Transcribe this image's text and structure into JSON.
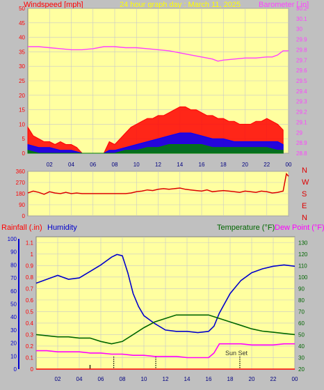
{
  "header": {
    "left_label": "Windspeed [mph]",
    "title": "24 hour graph day : March 11, 2025",
    "right_label": "Barometer [.in]"
  },
  "colors": {
    "background": "#c0c0c0",
    "plot_bg": "#ffffa0",
    "grid": "#c8c8c8",
    "wind_gust": "#ff0000",
    "wind_avg": "#0000ff",
    "wind_low": "#008000",
    "barometer": "#ff40ff",
    "direction": "#dd0000",
    "humidity": "#0000cc",
    "temperature": "#006600",
    "dewpoint": "#ff00ff",
    "rain": "#ff0000",
    "left_axis_text": "#ff0000",
    "humidity_axis_text": "#0000cc",
    "temp_axis_text": "#006600"
  },
  "chart_data": [
    {
      "id": "wind-barometer",
      "type": "line",
      "title": "24 hour graph day : March 11, 2025",
      "ylabel": "Windspeed [mph]",
      "y2label": "Barometer [.in]",
      "x_range": [
        0,
        24
      ],
      "x_ticks": [
        "02",
        "04",
        "06",
        "08",
        "10",
        "12",
        "14",
        "16",
        "18",
        "20",
        "22",
        "00"
      ],
      "ylim": [
        0,
        50
      ],
      "y_ticks": [
        "0",
        "5",
        "10",
        "15",
        "20",
        "25",
        "30",
        "35",
        "40",
        "45",
        "50"
      ],
      "y2lim": [
        28.8,
        30.2
      ],
      "y2_ticks": [
        "28.8",
        "28.9",
        "29",
        "29.1",
        "29.2",
        "29.3",
        "29.4",
        "29.5",
        "29.6",
        "29.7",
        "29.8",
        "29.9",
        "30",
        "30.1",
        "30.2"
      ],
      "series": [
        {
          "key": "gust",
          "axis": "left",
          "x": [
            0,
            0.5,
            1,
            1.5,
            2,
            2.5,
            3,
            3.5,
            4,
            4.5,
            5,
            5.5,
            6,
            6.5,
            7,
            7.5,
            8,
            8.5,
            9,
            9.5,
            10,
            10.5,
            11,
            11.5,
            12,
            12.5,
            13,
            13.5,
            14,
            14.5,
            15,
            15.5,
            16,
            16.5,
            17,
            17.5,
            18,
            18.5,
            19,
            19.5,
            20,
            20.5,
            21,
            21.5,
            22,
            22.5,
            23,
            23.5
          ],
          "y": [
            9,
            6,
            5,
            4,
            4,
            3,
            4,
            3,
            3,
            2,
            0,
            0,
            0,
            0,
            0,
            4,
            3,
            5,
            7,
            9,
            10,
            11,
            12,
            12,
            13,
            13,
            14,
            15,
            16,
            16,
            15,
            15,
            14,
            13,
            13,
            12,
            12,
            11,
            11,
            10,
            10,
            10,
            11,
            11,
            12,
            11,
            10,
            8
          ]
        },
        {
          "key": "avg",
          "axis": "left",
          "x": [
            0,
            1,
            2,
            3,
            4,
            5,
            6,
            7,
            7.5,
            8,
            9,
            10,
            11,
            12,
            13,
            14,
            15,
            16,
            17,
            18,
            19,
            20,
            21,
            22,
            23,
            23.5
          ],
          "y": [
            3,
            2,
            2,
            1,
            1,
            0,
            0,
            0,
            1,
            1,
            2,
            3,
            4,
            5,
            6,
            7,
            7,
            6,
            5,
            5,
            4,
            4,
            4,
            4,
            4,
            3
          ]
        },
        {
          "key": "low",
          "axis": "left",
          "x": [
            0,
            1,
            2,
            3,
            4,
            5,
            6,
            7,
            7.5,
            8,
            9,
            10,
            11,
            12,
            13,
            14,
            15,
            16,
            17,
            18,
            19,
            20,
            21,
            22,
            23,
            23.5
          ],
          "y": [
            1,
            0,
            0,
            0,
            0,
            0,
            0,
            0,
            0,
            0,
            1,
            1,
            2,
            2,
            3,
            3,
            3,
            3,
            2,
            2,
            2,
            2,
            2,
            2,
            1,
            1
          ]
        },
        {
          "key": "barometer",
          "axis": "right",
          "x": [
            0,
            1,
            2,
            3,
            4,
            5,
            6,
            7,
            7.5,
            8,
            9,
            10,
            11,
            12,
            13,
            14,
            15,
            16,
            17,
            17.5,
            18,
            19,
            20,
            21,
            22,
            22.5,
            23,
            23.5,
            24
          ],
          "y": [
            29.83,
            29.83,
            29.82,
            29.81,
            29.8,
            29.8,
            29.81,
            29.83,
            29.83,
            29.83,
            29.82,
            29.82,
            29.81,
            29.8,
            29.79,
            29.77,
            29.75,
            29.73,
            29.71,
            29.69,
            29.7,
            29.71,
            29.72,
            29.72,
            29.73,
            29.73,
            29.75,
            29.79,
            29.79
          ]
        }
      ]
    },
    {
      "id": "wind-direction",
      "type": "line",
      "x_range": [
        0,
        24
      ],
      "ylim": [
        0,
        360
      ],
      "y_ticks": [
        "0",
        "90",
        "180",
        "270",
        "360"
      ],
      "compass_labels": [
        "N",
        "W",
        "S",
        "E",
        "N"
      ],
      "series": [
        {
          "key": "direction",
          "x": [
            0,
            0.5,
            1,
            1.5,
            2,
            2.5,
            3,
            3.5,
            4,
            4.5,
            5,
            5.5,
            6,
            6.5,
            7,
            7.5,
            8,
            8.5,
            9,
            9.5,
            10,
            10.5,
            11,
            11.5,
            12,
            12.5,
            13,
            13.5,
            14,
            14.5,
            15,
            15.5,
            16,
            16.5,
            17,
            17.5,
            18,
            18.5,
            19,
            19.5,
            20,
            20.5,
            21,
            21.5,
            22,
            22.5,
            23,
            23.5,
            23.8,
            24
          ],
          "y": [
            185,
            200,
            190,
            175,
            195,
            185,
            180,
            190,
            180,
            185,
            180,
            180,
            180,
            180,
            180,
            180,
            180,
            180,
            180,
            185,
            195,
            200,
            210,
            205,
            215,
            220,
            215,
            220,
            225,
            215,
            210,
            205,
            200,
            210,
            195,
            200,
            205,
            200,
            195,
            190,
            200,
            195,
            190,
            200,
            195,
            185,
            190,
            200,
            340,
            320
          ]
        }
      ]
    },
    {
      "id": "rain-humidity-temperature",
      "type": "line",
      "legend": [
        "Rainfall (.in)",
        "Humidity",
        "Temperature (°F)",
        "Dew Point (°F)"
      ],
      "annotation": "Sun Set",
      "x_range": [
        0,
        24
      ],
      "x_ticks": [
        "02",
        "04",
        "06",
        "08",
        "10",
        "12",
        "14",
        "16",
        "18",
        "20",
        "22",
        "00"
      ],
      "humidity_lim": [
        0,
        100
      ],
      "humidity_ticks": [
        "0",
        "10",
        "20",
        "30",
        "40",
        "50",
        "60",
        "70",
        "80",
        "90",
        "100"
      ],
      "rain_lim": [
        0,
        1.15
      ],
      "rain_ticks": [
        "0",
        "0.1",
        "0.2",
        "0.3",
        "0.4",
        "0.5",
        "0.6",
        "0.7",
        "0.8",
        "0.9",
        "1",
        "1.1"
      ],
      "temp_lim": [
        20,
        135
      ],
      "temp_ticks": [
        "20",
        "30",
        "40",
        "50",
        "60",
        "70",
        "80",
        "90",
        "100",
        "110",
        "120",
        "130"
      ],
      "event_marks": [
        {
          "x": 5.0,
          "style": "solid"
        },
        {
          "x": 7.2,
          "style": "dotted"
        },
        {
          "x": 11.1,
          "style": "dotted"
        },
        {
          "x": 18.9,
          "style": "dotted"
        }
      ],
      "series": [
        {
          "key": "humidity",
          "axis": "humidity",
          "x": [
            0,
            1,
            2,
            3,
            4,
            5,
            6,
            7,
            7.5,
            8,
            8.5,
            9,
            9.5,
            10,
            11,
            12,
            13,
            14,
            15,
            16,
            16.5,
            17,
            18,
            19,
            20,
            21,
            22,
            23,
            24
          ],
          "y": [
            66,
            69,
            72,
            69,
            70,
            75,
            80,
            86,
            88,
            87,
            74,
            58,
            48,
            41,
            35,
            30,
            29,
            29,
            28,
            29,
            33,
            43,
            58,
            68,
            74,
            77,
            79,
            80,
            79
          ]
        },
        {
          "key": "temperature",
          "axis": "temp",
          "x": [
            0,
            1,
            2,
            3,
            4,
            5,
            6,
            7,
            7.5,
            8,
            9,
            10,
            11,
            12,
            13,
            14,
            15,
            16,
            17,
            18,
            19,
            20,
            21,
            22,
            23,
            24
          ],
          "y": [
            50,
            49,
            48,
            48,
            47,
            47,
            44,
            42,
            43,
            44,
            50,
            56,
            61,
            64,
            67,
            67,
            67,
            67,
            64,
            61,
            58,
            55,
            53,
            52,
            51,
            50
          ]
        },
        {
          "key": "dewpoint",
          "axis": "temp",
          "x": [
            0,
            1,
            2,
            3,
            4,
            5,
            6,
            7,
            8,
            9,
            10,
            11,
            12,
            13,
            14,
            15,
            16,
            16.5,
            17,
            18,
            19,
            20,
            21,
            22,
            23,
            24
          ],
          "y": [
            36,
            36,
            35,
            35,
            35,
            34,
            34,
            33,
            33,
            32,
            32,
            31,
            31,
            31,
            30,
            30,
            30,
            34,
            42,
            42,
            42,
            41,
            41,
            41,
            42,
            42
          ]
        },
        {
          "key": "rain",
          "axis": "rain",
          "x": [
            0,
            24
          ],
          "y": [
            0,
            0
          ]
        }
      ]
    }
  ]
}
